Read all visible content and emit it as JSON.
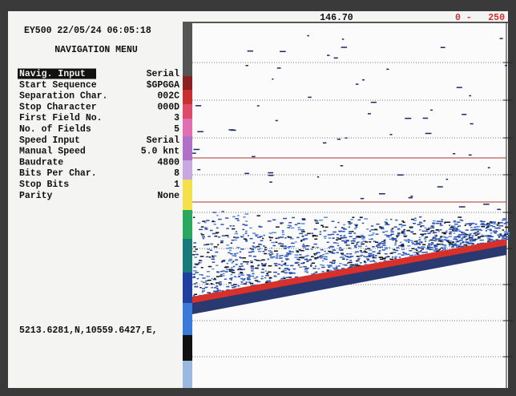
{
  "header": {
    "status": "EY500 22/05/24 06:05:18",
    "title": "NAVIGATION MENU"
  },
  "menu": {
    "rows": [
      {
        "label": "Navig. Input",
        "value": "Serial"
      },
      {
        "label": "Start Sequence",
        "value": "$GPGGA"
      },
      {
        "label": "Separation Char.",
        "value": "002C"
      },
      {
        "label": "Stop Character",
        "value": "000D"
      },
      {
        "label": "First Field No.",
        "value": "3"
      },
      {
        "label": "No. of Fields",
        "value": "5"
      },
      {
        "label": "Speed Input",
        "value": "Serial"
      },
      {
        "label": "Manual Speed",
        "value": "5.0 knt"
      },
      {
        "label": "Baudrate",
        "value": "4800"
      },
      {
        "label": "Bits Per Char.",
        "value": "8"
      },
      {
        "label": "Stop Bits",
        "value": "1"
      },
      {
        "label": "Parity",
        "value": "None"
      }
    ]
  },
  "position": "5213.6281,N,10559.6427,E,",
  "echogram": {
    "depth": "146.70",
    "range_start": "0 -",
    "range_end": "250"
  }
}
